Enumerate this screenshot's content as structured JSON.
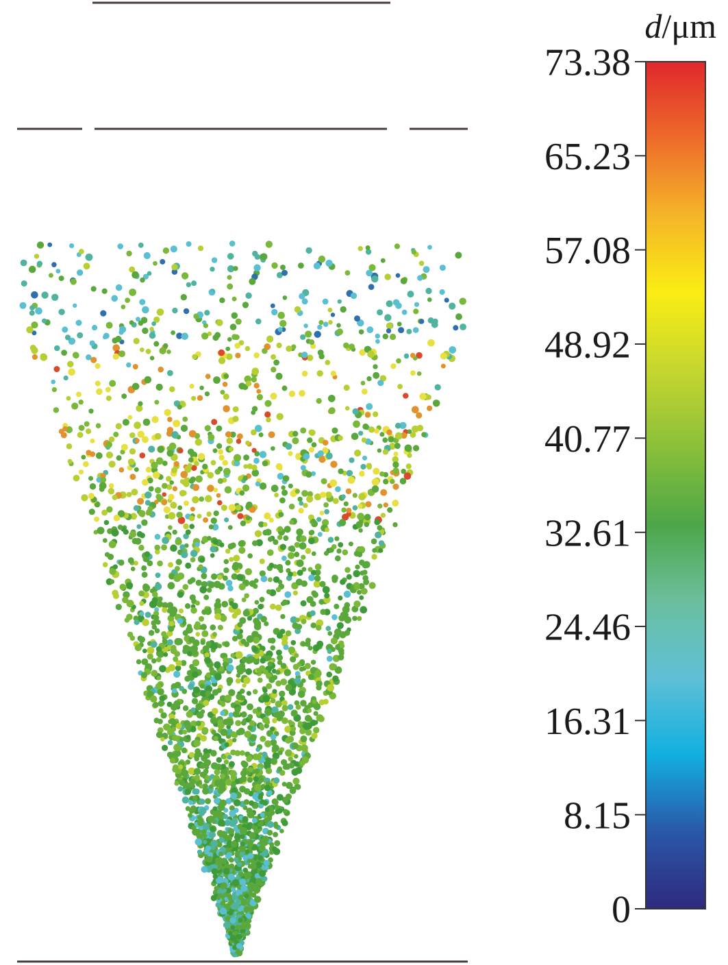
{
  "chart_data": {
    "type": "scatter",
    "title": "",
    "colorbar": {
      "title_symbol": "d",
      "title_unit": "/μm",
      "min": 0,
      "max": 73.38,
      "ticks": [
        "0",
        "8.15",
        "16.31",
        "24.46",
        "32.61",
        "40.77",
        "48.92",
        "57.08",
        "65.23",
        "73.38"
      ],
      "tick_values": [
        0,
        8.15,
        16.31,
        24.46,
        32.61,
        40.77,
        48.92,
        57.08,
        65.23,
        73.38
      ],
      "colormap": [
        "#2e2a7e",
        "#2a57a8",
        "#12afe0",
        "#5fc0d6",
        "#6bbf9e",
        "#4da747",
        "#8bc03a",
        "#c6d62f",
        "#fbed13",
        "#f5b529",
        "#ee6b2a",
        "#e0282c"
      ]
    },
    "particles": {
      "shape": "inverted-cone",
      "dominant_d_range": [
        32.61,
        48.92
      ],
      "colors": {
        "green": "#5aa83c",
        "light_green": "#7ab83a",
        "dark_green": "#3f9a3a",
        "yellow_green": "#b8cf33",
        "yellow": "#e8e040",
        "orange": "#e0922e",
        "red": "#d84a2a",
        "teal": "#4fb3a0",
        "cyan": "#5bbfd2",
        "blue": "#2f6fae",
        "navy": "#23346e"
      }
    },
    "lines": {
      "color": "#4a3b3b"
    }
  }
}
